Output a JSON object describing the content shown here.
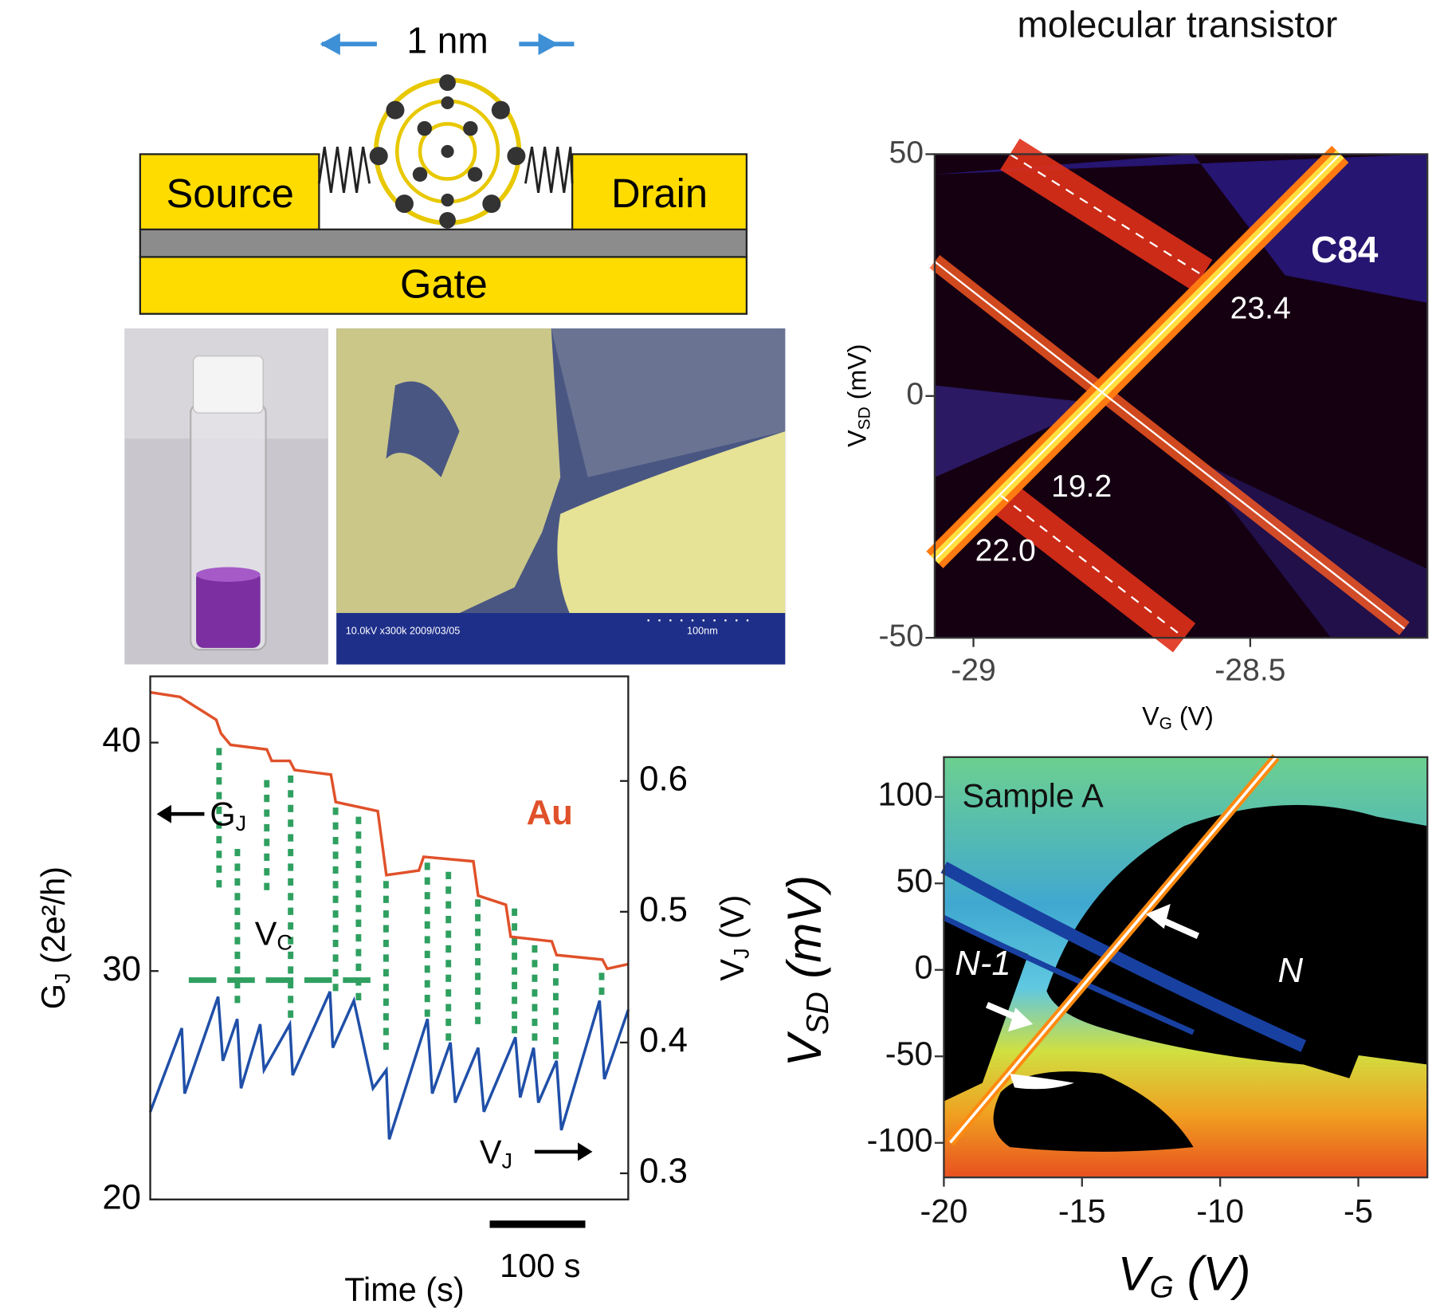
{
  "title": "molecular transistor",
  "device": {
    "scale_label": "1 nm",
    "source": "Source",
    "drain": "Drain",
    "gate": "Gate"
  },
  "sem": {
    "caption": "10.0kV x300k 2009/03/05",
    "scale": "100nm"
  },
  "trace": {
    "ylabel": {
      "main": "G",
      "sub": "J",
      "rest": " (2e²/h)"
    },
    "y2label": {
      "main": "V",
      "sub": "J",
      "rest": " (V)"
    },
    "xlabel": "Time (s)",
    "ylim": [
      20,
      42.9
    ],
    "yticks": [
      20,
      30,
      40
    ],
    "y2lim": [
      0.28,
      0.68
    ],
    "y2ticks": [
      0.3,
      0.4,
      0.5,
      0.6
    ],
    "xlim": [
      0,
      500
    ],
    "scale_bar": {
      "label": "100 s",
      "length": 100
    },
    "material": "Au",
    "arrow_g": {
      "main": "G",
      "sub": "J"
    },
    "arrow_v": {
      "main": "V",
      "sub": "J"
    },
    "vc": {
      "main": "V",
      "sub": "C"
    },
    "series": [
      {
        "name": "G",
        "color": "#e0512a",
        "x": [
          0,
          31,
          69,
          74,
          84,
          122,
          127,
          146,
          151,
          189,
          194,
          238,
          247,
          281,
          286,
          338,
          343,
          372,
          377,
          420,
          425,
          473,
          478,
          500
        ],
        "values": [
          42.2,
          42.0,
          41.0,
          40.4,
          39.9,
          39.7,
          39.2,
          39.2,
          38.8,
          38.6,
          37.4,
          37.0,
          34.2,
          34.4,
          35.0,
          34.8,
          33.3,
          32.9,
          31.5,
          31.3,
          30.7,
          30.5,
          30.1,
          30.3
        ]
      },
      {
        "name": "V",
        "color": "#1f4fa8",
        "axis": "y2",
        "x": [
          0,
          33,
          36,
          71,
          76,
          91,
          95,
          115,
          119,
          146,
          149,
          188,
          191,
          213,
          233,
          247,
          250,
          290,
          295,
          314,
          319,
          343,
          349,
          382,
          387,
          401,
          406,
          425,
          430,
          470,
          475,
          500
        ],
        "values": [
          0.347,
          0.411,
          0.361,
          0.435,
          0.386,
          0.418,
          0.365,
          0.414,
          0.379,
          0.414,
          0.375,
          0.439,
          0.396,
          0.432,
          0.365,
          0.379,
          0.326,
          0.418,
          0.361,
          0.4,
          0.354,
          0.396,
          0.347,
          0.404,
          0.358,
          0.396,
          0.354,
          0.386,
          0.333,
          0.432,
          0.372,
          0.425
        ]
      }
    ]
  },
  "map1": {
    "ylabel": {
      "main": "V",
      "sub": "SD",
      "rest": " (mV)"
    },
    "xlabel": {
      "main": "V",
      "sub": "G",
      "rest": " (V)"
    },
    "xlim": [
      -29.07,
      -28.18
    ],
    "xticks": [
      -29,
      -28.5
    ],
    "ylim": [
      -50,
      50
    ],
    "yticks": [
      50,
      0,
      -50
    ],
    "label": "C84",
    "annotations": [
      "23.4",
      "19.2",
      "22.0"
    ]
  },
  "map2": {
    "ylabel": {
      "main": "V",
      "sub": "SD",
      "rest": " (mV)"
    },
    "xlabel": {
      "main": "V",
      "sub": "G",
      "rest": " (V)"
    },
    "xlim": [
      -20,
      -2.5
    ],
    "xticks": [
      -20,
      -15,
      -10,
      -5
    ],
    "ylim": [
      -120,
      123
    ],
    "yticks": [
      100,
      50,
      0,
      -50,
      -100
    ],
    "label": "Sample A",
    "regions": [
      "N-1",
      "N"
    ]
  }
}
